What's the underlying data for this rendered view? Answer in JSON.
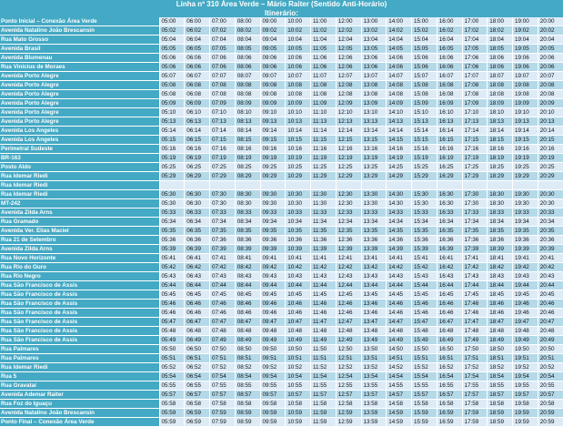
{
  "header": {
    "title": "Linha nº 310 Área Verde – Mário Raiter (Sentido Anti-Horário)",
    "subtitle": "Itinerário:"
  },
  "rows": [
    {
      "stop": "Ponto Inicial – Conexão Área Verde",
      "times": [
        "05:00",
        "06:00",
        "07:00",
        "08:00",
        "09:00",
        "10:00",
        "11:00",
        "12:00",
        "13:00",
        "14:00",
        "15:00",
        "16:00",
        "17:00",
        "18:00",
        "19:00",
        "20:00"
      ]
    },
    {
      "stop": "Avenida Natalino João Brescansin",
      "times": [
        "05:02",
        "06:02",
        "07:02",
        "08:02",
        "09:02",
        "10:02",
        "11:02",
        "12:02",
        "13:02",
        "14:02",
        "15:02",
        "16:02",
        "17:02",
        "18:02",
        "19:02",
        "20:02"
      ]
    },
    {
      "stop": "Rua Mato Grosso",
      "times": [
        "05:04",
        "06:04",
        "07:04",
        "08:04",
        "09:04",
        "10:04",
        "11:04",
        "12:04",
        "13:04",
        "14:04",
        "15:04",
        "16:04",
        "17:04",
        "18:04",
        "19:04",
        "20:04"
      ]
    },
    {
      "stop": "Avenida Brasil",
      "times": [
        "05:05",
        "06:05",
        "07:05",
        "08:05",
        "09:05",
        "10:05",
        "11:05",
        "12:05",
        "13:05",
        "14:05",
        "15:05",
        "16:05",
        "17:05",
        "18:05",
        "19:05",
        "20:05"
      ]
    },
    {
      "stop": "Avenida Blumenau",
      "times": [
        "05:06",
        "06:06",
        "07:06",
        "08:06",
        "09:06",
        "10:06",
        "11:06",
        "12:06",
        "13:06",
        "14:06",
        "15:06",
        "16:06",
        "17:06",
        "18:06",
        "19:06",
        "20:06"
      ]
    },
    {
      "stop": "Rua Vinicius de Moraes",
      "times": [
        "05:06",
        "06:06",
        "07:06",
        "08:06",
        "09:06",
        "10:06",
        "11:06",
        "12:06",
        "13:06",
        "14:06",
        "15:06",
        "16:06",
        "17:06",
        "18:06",
        "19:06",
        "20:06"
      ]
    },
    {
      "stop": "Avenida Porto Alegre",
      "times": [
        "05:07",
        "06:07",
        "07:07",
        "08:07",
        "09:07",
        "10:07",
        "11:07",
        "12:07",
        "13:07",
        "14:07",
        "15:07",
        "16:07",
        "17:07",
        "18:07",
        "19:07",
        "20:07"
      ]
    },
    {
      "stop": "Avenida Porto Alegre",
      "times": [
        "05:08",
        "06:08",
        "07:08",
        "08:08",
        "09:08",
        "10:08",
        "11:08",
        "12:08",
        "13:08",
        "14:08",
        "15:08",
        "16:08",
        "17:08",
        "18:08",
        "19:08",
        "20:08"
      ]
    },
    {
      "stop": "Avenida Porto Alegre",
      "times": [
        "05:08",
        "06:08",
        "07:08",
        "08:08",
        "09:08",
        "10:08",
        "11:08",
        "12:08",
        "13:08",
        "14:08",
        "15:08",
        "16:08",
        "17:08",
        "18:08",
        "19:08",
        "20:08"
      ]
    },
    {
      "stop": "Avenida Porto Alegre",
      "times": [
        "05:09",
        "06:09",
        "07:09",
        "08:09",
        "09:09",
        "10:09",
        "11:09",
        "12:09",
        "13:09",
        "14:09",
        "15:09",
        "16:09",
        "17:09",
        "18:09",
        "19:09",
        "20:09"
      ]
    },
    {
      "stop": "Avenida Porto Alegre",
      "times": [
        "05:10",
        "06:10",
        "07:10",
        "08:10",
        "09:10",
        "10:10",
        "11:10",
        "12:10",
        "13:10",
        "14:10",
        "15:10",
        "16:10",
        "17:10",
        "18:10",
        "19:10",
        "20:10"
      ]
    },
    {
      "stop": "Avenida Porto Alegre",
      "times": [
        "05:13",
        "06:13",
        "07:13",
        "08:13",
        "09:13",
        "10:13",
        "11:13",
        "12:13",
        "13:13",
        "14:13",
        "15:13",
        "16:13",
        "17:13",
        "18:13",
        "19:13",
        "20:13"
      ]
    },
    {
      "stop": "Avenida Los Angeles",
      "times": [
        "05:14",
        "06:14",
        "07:14",
        "08:14",
        "09:14",
        "10:14",
        "11:14",
        "12:14",
        "13:14",
        "14:14",
        "15:14",
        "16:14",
        "17:14",
        "18:14",
        "19:14",
        "20:14"
      ]
    },
    {
      "stop": "Avenida Los Angeles",
      "times": [
        "05:15",
        "06:15",
        "07:15",
        "08:15",
        "09:15",
        "10:15",
        "11:15",
        "12:15",
        "13:15",
        "14:15",
        "15:15",
        "16:15",
        "17:15",
        "18:15",
        "19:15",
        "20:15"
      ]
    },
    {
      "stop": "Perimetral Sudeste",
      "times": [
        "05:16",
        "06:16",
        "07:16",
        "08:16",
        "09:16",
        "10:16",
        "11:16",
        "12:16",
        "13:16",
        "14:16",
        "15:16",
        "16:16",
        "17:16",
        "18:16",
        "19:16",
        "20:16"
      ]
    },
    {
      "stop": "BR-163",
      "times": [
        "05:19",
        "06:19",
        "07:19",
        "08:19",
        "09:19",
        "10:19",
        "11:19",
        "12:19",
        "13:19",
        "14:19",
        "15:19",
        "16:19",
        "17:19",
        "18:19",
        "19:19",
        "20:19"
      ]
    },
    {
      "stop": "Posto Aldo",
      "times": [
        "05:25",
        "06:25",
        "07:25",
        "08:25",
        "09:25",
        "10:25",
        "11:25",
        "12:25",
        "13:25",
        "14:25",
        "15:25",
        "16:25",
        "17:25",
        "18:25",
        "19:25",
        "20:25"
      ]
    },
    {
      "stop": "Rua Idemar Riedi",
      "times": [
        "05:29",
        "06:29",
        "07:29",
        "08:29",
        "09:29",
        "10:29",
        "11:29",
        "12:29",
        "13:29",
        "14:29",
        "15:29",
        "16:29",
        "17:29",
        "18:29",
        "19:29",
        "20:29"
      ]
    },
    {
      "stop": "Rua Idemar Riedi",
      "times": [
        "",
        "",
        "",
        "",
        "",
        "",
        "",
        "",
        "",
        "",
        "",
        "",
        "",
        "",
        "",
        ""
      ]
    },
    {
      "stop": "Rua Idemar Riedi",
      "times": [
        "05:30",
        "06:30",
        "07:30",
        "08:30",
        "09:30",
        "10:30",
        "11:30",
        "12:30",
        "13:30",
        "14:30",
        "15:30",
        "16:30",
        "17:30",
        "18:30",
        "19:30",
        "20:30"
      ]
    },
    {
      "stop": "MT-242",
      "times": [
        "05:30",
        "06:30",
        "07:30",
        "08:30",
        "09:30",
        "10:30",
        "11:30",
        "12:30",
        "13:30",
        "14:30",
        "15:30",
        "16:30",
        "17:30",
        "18:30",
        "19:30",
        "20:30"
      ]
    },
    {
      "stop": "Avenida Zilda Arns",
      "times": [
        "05:33",
        "06:33",
        "07:33",
        "08:33",
        "09:33",
        "10:33",
        "11:33",
        "12:33",
        "13:33",
        "14:33",
        "15:33",
        "16:33",
        "17:33",
        "18:33",
        "19:33",
        "20:33"
      ]
    },
    {
      "stop": "Rua Gramado",
      "times": [
        "05:34",
        "06:34",
        "07:34",
        "08:34",
        "09:34",
        "10:34",
        "11:34",
        "12:34",
        "13:34",
        "14:34",
        "15:34",
        "16:34",
        "17:34",
        "18:34",
        "19:34",
        "20:34"
      ]
    },
    {
      "stop": "Avenida Ver. Elias Maciel",
      "times": [
        "05:35",
        "06:35",
        "07:35",
        "08:35",
        "09:35",
        "10:35",
        "11:35",
        "12:35",
        "13:35",
        "14:35",
        "15:35",
        "16:35",
        "17:35",
        "18:35",
        "19:35",
        "20:35"
      ]
    },
    {
      "stop": "Rua 21 de Setembro",
      "times": [
        "05:36",
        "06:36",
        "07:36",
        "08:36",
        "09:36",
        "10:36",
        "11:36",
        "12:36",
        "13:36",
        "14:36",
        "15:36",
        "16:36",
        "17:36",
        "18:36",
        "19:36",
        "20:36"
      ]
    },
    {
      "stop": "Avenida Zilda Arns",
      "times": [
        "05:39",
        "06:39",
        "07:39",
        "08:39",
        "09:39",
        "10:39",
        "11:39",
        "12:39",
        "13:39",
        "14:39",
        "15:39",
        "16:39",
        "17:39",
        "18:39",
        "19:39",
        "20:39"
      ]
    },
    {
      "stop": "Rua Novo Horizonte",
      "times": [
        "05:41",
        "06:41",
        "07:41",
        "08:41",
        "09:41",
        "10:41",
        "11:41",
        "12:41",
        "13:41",
        "14:41",
        "15:41",
        "16:41",
        "17:41",
        "18:41",
        "19:41",
        "20:41"
      ]
    },
    {
      "stop": "Rua Rio do Ouro",
      "times": [
        "05:42",
        "06:42",
        "07:42",
        "08:42",
        "09:42",
        "10:42",
        "11:42",
        "12:42",
        "13:42",
        "14:42",
        "15:42",
        "16:42",
        "17:42",
        "18:42",
        "19:42",
        "20:42"
      ]
    },
    {
      "stop": "Rua Rio Negro",
      "times": [
        "05:43",
        "06:43",
        "07:43",
        "08:43",
        "09:43",
        "10:43",
        "11:43",
        "12:43",
        "13:43",
        "14:43",
        "15:43",
        "16:43",
        "17:43",
        "18:43",
        "19:43",
        "20:43"
      ]
    },
    {
      "stop": "Rua São Francisco de Assis",
      "times": [
        "05:44",
        "06:44",
        "07:44",
        "08:44",
        "09:44",
        "10:44",
        "11:44",
        "12:44",
        "13:44",
        "14:44",
        "15:44",
        "16:44",
        "17:44",
        "18:44",
        "19:44",
        "20:44"
      ]
    },
    {
      "stop": "Rua São Francisco de Assis",
      "times": [
        "05:45",
        "06:45",
        "07:45",
        "08:45",
        "09:45",
        "10:45",
        "11:45",
        "12:45",
        "13:45",
        "14:45",
        "15:45",
        "16:45",
        "17:45",
        "18:45",
        "19:45",
        "20:45"
      ]
    },
    {
      "stop": "Rua São Francisco de Assis",
      "times": [
        "05:46",
        "06:46",
        "07:46",
        "08:46",
        "09:46",
        "10:46",
        "11:46",
        "12:46",
        "13:46",
        "14:46",
        "15:46",
        "16:46",
        "17:46",
        "18:46",
        "19:46",
        "20:46"
      ]
    },
    {
      "stop": "Rua São Francisco de Assis",
      "times": [
        "05:46",
        "06:46",
        "07:46",
        "08:46",
        "09:46",
        "10:46",
        "11:46",
        "12:46",
        "13:46",
        "14:46",
        "15:46",
        "16:46",
        "17:46",
        "18:46",
        "19:46",
        "20:46"
      ]
    },
    {
      "stop": "Rua São Francisco de Assis",
      "times": [
        "05:47",
        "06:47",
        "07:47",
        "08:47",
        "09:47",
        "10:47",
        "11:47",
        "12:47",
        "13:47",
        "14:47",
        "15:47",
        "16:47",
        "17:47",
        "18:47",
        "19:47",
        "20:47"
      ]
    },
    {
      "stop": "Rua São Francisco de Assis",
      "times": [
        "05:48",
        "06:48",
        "07:48",
        "08:48",
        "09:48",
        "10:48",
        "11:48",
        "12:48",
        "13:48",
        "14:48",
        "15:48",
        "16:48",
        "17:48",
        "18:48",
        "19:48",
        "20:48"
      ]
    },
    {
      "stop": "Rua São Francisco de Assis",
      "times": [
        "05:49",
        "06:49",
        "07:49",
        "08:49",
        "09:49",
        "10:49",
        "11:49",
        "12:49",
        "13:49",
        "14:49",
        "15:49",
        "16:49",
        "17:49",
        "18:49",
        "19:49",
        "20:49"
      ]
    },
    {
      "stop": "Rua Palmares",
      "times": [
        "05:50",
        "06:50",
        "07:50",
        "08:50",
        "09:50",
        "10:50",
        "11:50",
        "12:50",
        "13:50",
        "14:50",
        "15:50",
        "16:50",
        "17:50",
        "18:50",
        "19:50",
        "20:50"
      ]
    },
    {
      "stop": "Rua Palmares",
      "times": [
        "05:51",
        "06:51",
        "07:51",
        "08:51",
        "09:51",
        "10:51",
        "11:51",
        "12:51",
        "13:51",
        "14:51",
        "15:51",
        "16:51",
        "17:51",
        "18:51",
        "19:51",
        "20:51"
      ]
    },
    {
      "stop": "Rua Idemar Riedi",
      "times": [
        "05:52",
        "06:52",
        "07:52",
        "08:52",
        "09:52",
        "10:52",
        "11:52",
        "12:52",
        "13:52",
        "14:52",
        "15:52",
        "16:52",
        "17:52",
        "18:52",
        "19:52",
        "20:52"
      ]
    },
    {
      "stop": "Rua 5",
      "times": [
        "05:54",
        "06:54",
        "07:54",
        "08:54",
        "09:54",
        "10:54",
        "11:54",
        "12:54",
        "13:54",
        "14:54",
        "15:54",
        "16:54",
        "17:54",
        "18:54",
        "19:54",
        "20:54"
      ]
    },
    {
      "stop": "Rua Gravataí",
      "times": [
        "05:55",
        "06:55",
        "07:55",
        "08:55",
        "09:55",
        "10:55",
        "11:55",
        "12:55",
        "13:55",
        "14:55",
        "15:55",
        "16:55",
        "17:55",
        "18:55",
        "19:55",
        "20:55"
      ]
    },
    {
      "stop": "Avenida Ademar Raiter",
      "times": [
        "05:57",
        "06:57",
        "07:57",
        "08:57",
        "09:57",
        "10:57",
        "11:57",
        "12:57",
        "13:57",
        "14:57",
        "15:57",
        "16:57",
        "17:57",
        "18:57",
        "19:57",
        "20:57"
      ]
    },
    {
      "stop": "Rua Foz do Iguaçu",
      "times": [
        "05:58",
        "06:58",
        "07:58",
        "08:58",
        "09:58",
        "10:58",
        "11:58",
        "12:58",
        "13:58",
        "14:58",
        "15:58",
        "16:58",
        "17:58",
        "18:58",
        "19:58",
        "20:58"
      ]
    },
    {
      "stop": "Avenida Natalino João Brescansin",
      "times": [
        "05:59",
        "06:59",
        "07:59",
        "08:59",
        "09:59",
        "10:59",
        "11:59",
        "12:59",
        "13:59",
        "14:59",
        "15:59",
        "16:59",
        "17:59",
        "18:59",
        "19:59",
        "20:59"
      ]
    },
    {
      "stop": "Ponto Final – Conexão Área Verde",
      "times": [
        "05:59",
        "06:59",
        "07:59",
        "08:59",
        "09:59",
        "10:59",
        "11:59",
        "12:59",
        "13:59",
        "14:59",
        "15:59",
        "16:59",
        "17:59",
        "18:59",
        "19:59",
        "20:59"
      ]
    }
  ]
}
